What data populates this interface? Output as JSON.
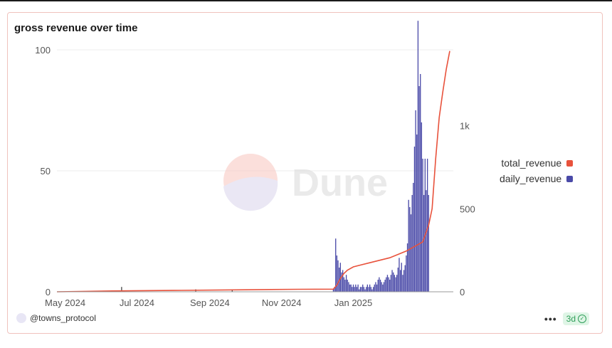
{
  "title": "gross revenue over time",
  "user": "@towns_protocol",
  "menu_icon": "more-icon",
  "badge": {
    "label": "3d",
    "icon": "check-circle-icon"
  },
  "watermark": "Dune",
  "colors": {
    "total_revenue": "#e8523c",
    "daily_revenue": "#4a4aa8",
    "grid": "#eeeeee"
  },
  "chart_data": {
    "type": "bar+line",
    "title": "gross revenue over time",
    "x_tick_labels": [
      "May 2024",
      "Jul 2024",
      "Sep 2024",
      "Nov 2024",
      "Jan 2025"
    ],
    "x_range": [
      "2024-04-24",
      "2025-03-27"
    ],
    "y_left": {
      "range": [
        0,
        100
      ],
      "ticks": [
        0,
        50,
        100
      ],
      "tick_labels": [
        "0",
        "50",
        "100"
      ],
      "series": "daily_revenue"
    },
    "y_right": {
      "range": [
        0,
        1500
      ],
      "ticks": [
        0,
        500,
        1000
      ],
      "tick_labels": [
        "0",
        "500",
        "1k"
      ],
      "series": "total_revenue"
    },
    "grid": true,
    "legend_position": "right",
    "series": [
      {
        "name": "total_revenue",
        "type": "line",
        "axis": "right",
        "points": [
          [
            "2024-04-24",
            0
          ],
          [
            "2024-06-10",
            5
          ],
          [
            "2024-08-01",
            8
          ],
          [
            "2024-10-01",
            12
          ],
          [
            "2024-11-15",
            15
          ],
          [
            "2024-12-15",
            16
          ],
          [
            "2024-12-18",
            40
          ],
          [
            "2024-12-21",
            80
          ],
          [
            "2024-12-24",
            110
          ],
          [
            "2024-12-27",
            130
          ],
          [
            "2025-01-01",
            150
          ],
          [
            "2025-01-15",
            175
          ],
          [
            "2025-02-01",
            205
          ],
          [
            "2025-02-15",
            245
          ],
          [
            "2025-03-01",
            300
          ],
          [
            "2025-03-06",
            400
          ],
          [
            "2025-03-09",
            500
          ],
          [
            "2025-03-12",
            800
          ],
          [
            "2025-03-15",
            1050
          ],
          [
            "2025-03-18",
            1200
          ],
          [
            "2025-03-21",
            1340
          ],
          [
            "2025-03-24",
            1450
          ]
        ]
      },
      {
        "name": "daily_revenue",
        "type": "bar",
        "axis": "left",
        "spikes": [
          [
            "2024-06-18",
            2
          ],
          [
            "2024-08-20",
            1
          ],
          [
            "2024-09-20",
            1
          ]
        ],
        "points": [
          [
            "2024-12-15",
            1
          ],
          [
            "2024-12-16",
            2
          ],
          [
            "2024-12-17",
            22
          ],
          [
            "2024-12-18",
            15
          ],
          [
            "2024-12-19",
            13
          ],
          [
            "2024-12-20",
            10
          ],
          [
            "2024-12-21",
            12
          ],
          [
            "2024-12-22",
            8
          ],
          [
            "2024-12-23",
            9
          ],
          [
            "2024-12-24",
            6
          ],
          [
            "2024-12-25",
            5
          ],
          [
            "2024-12-26",
            7
          ],
          [
            "2024-12-27",
            5
          ],
          [
            "2024-12-28",
            4
          ],
          [
            "2024-12-29",
            3
          ],
          [
            "2024-12-30",
            3
          ],
          [
            "2024-12-31",
            2
          ],
          [
            "2025-01-01",
            3
          ],
          [
            "2025-01-02",
            2
          ],
          [
            "2025-01-03",
            3
          ],
          [
            "2025-01-04",
            2
          ],
          [
            "2025-01-05",
            3
          ],
          [
            "2025-01-06",
            1
          ],
          [
            "2025-01-07",
            2
          ],
          [
            "2025-01-08",
            2
          ],
          [
            "2025-01-09",
            3
          ],
          [
            "2025-01-10",
            2
          ],
          [
            "2025-01-11",
            1
          ],
          [
            "2025-01-12",
            2
          ],
          [
            "2025-01-13",
            3
          ],
          [
            "2025-01-14",
            2
          ],
          [
            "2025-01-15",
            3
          ],
          [
            "2025-01-16",
            2
          ],
          [
            "2025-01-17",
            1
          ],
          [
            "2025-01-18",
            2
          ],
          [
            "2025-01-19",
            3
          ],
          [
            "2025-01-20",
            4
          ],
          [
            "2025-01-21",
            3
          ],
          [
            "2025-01-22",
            5
          ],
          [
            "2025-01-23",
            6
          ],
          [
            "2025-01-24",
            5
          ],
          [
            "2025-01-25",
            4
          ],
          [
            "2025-01-26",
            3
          ],
          [
            "2025-01-27",
            4
          ],
          [
            "2025-01-28",
            5
          ],
          [
            "2025-01-29",
            6
          ],
          [
            "2025-01-30",
            7
          ],
          [
            "2025-01-31",
            6
          ],
          [
            "2025-02-01",
            5
          ],
          [
            "2025-02-02",
            7
          ],
          [
            "2025-02-03",
            9
          ],
          [
            "2025-02-04",
            8
          ],
          [
            "2025-02-05",
            7
          ],
          [
            "2025-02-06",
            6
          ],
          [
            "2025-02-07",
            7
          ],
          [
            "2025-02-08",
            10
          ],
          [
            "2025-02-09",
            14
          ],
          [
            "2025-02-10",
            9
          ],
          [
            "2025-02-11",
            12
          ],
          [
            "2025-02-12",
            7
          ],
          [
            "2025-02-13",
            9
          ],
          [
            "2025-02-14",
            11
          ],
          [
            "2025-02-15",
            15
          ],
          [
            "2025-02-16",
            20
          ],
          [
            "2025-02-17",
            38
          ],
          [
            "2025-02-18",
            35
          ],
          [
            "2025-02-19",
            32
          ],
          [
            "2025-02-20",
            40
          ],
          [
            "2025-02-21",
            45
          ],
          [
            "2025-02-22",
            60
          ],
          [
            "2025-02-23",
            75
          ],
          [
            "2025-02-24",
            65
          ],
          [
            "2025-02-25",
            112
          ],
          [
            "2025-02-26",
            85
          ],
          [
            "2025-02-27",
            90
          ],
          [
            "2025-02-28",
            70
          ],
          [
            "2025-03-01",
            55
          ],
          [
            "2025-03-02",
            40
          ],
          [
            "2025-03-03",
            55
          ],
          [
            "2025-03-04",
            42
          ],
          [
            "2025-03-05",
            55
          ],
          [
            "2025-03-06",
            40
          ]
        ]
      }
    ]
  }
}
